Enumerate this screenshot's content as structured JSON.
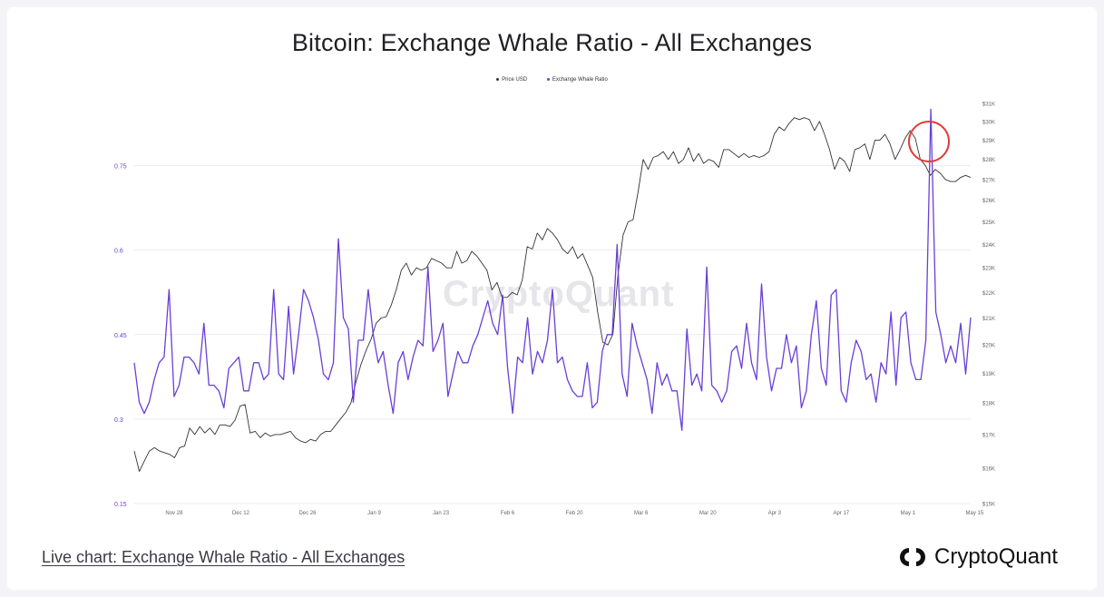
{
  "page": {
    "title": "Bitcoin: Exchange Whale Ratio - All Exchanges",
    "watermark": "CryptoQuant",
    "live_link": "Live chart: Exchange Whale Ratio - All Exchanges",
    "brand_name": "CryptoQuant",
    "brand_logo_icon": "cryptoquant-logo-icon"
  },
  "chart_data": {
    "type": "line",
    "title": "Bitcoin: Exchange Whale Ratio - All Exchanges",
    "legend_position": "top-center",
    "grid": true,
    "annotations": [
      {
        "type": "circle",
        "color": "#e03c3c",
        "target": "peak around May 8"
      }
    ],
    "x_tick_labels": [
      "Nov 28",
      "Dec 12",
      "Dec 26",
      "Jan 9",
      "Jan 23",
      "Feb 6",
      "Feb 20",
      "Mar 6",
      "Mar 20",
      "Apr 3",
      "Apr 17",
      "May 1",
      "May 15"
    ],
    "y_left": {
      "ticks": [
        0.15,
        0.3,
        0.45,
        0.6,
        0.75
      ],
      "tick_labels": [
        "0.15",
        "0.3",
        "0.45",
        "0.6",
        "0.75"
      ],
      "range": [
        0.15,
        0.87
      ]
    },
    "y_right": {
      "ticks": [
        15000,
        16000,
        17000,
        18000,
        19000,
        20000,
        21000,
        22000,
        23000,
        24000,
        25000,
        26000,
        27000,
        28000,
        29000,
        30000,
        31000
      ],
      "tick_labels": [
        "$15K",
        "$16K",
        "$17K",
        "$18K",
        "$19K",
        "$20K",
        "$21K",
        "$22K",
        "$23K",
        "$24K",
        "$25K",
        "$26K",
        "$27K",
        "$28K",
        "$29K",
        "$30K",
        "$31K"
      ],
      "scale": "log"
    },
    "series": [
      {
        "name": "Price USD",
        "color": "#333333",
        "axis": "right",
        "values": [
          16500,
          15900,
          16200,
          16500,
          16600,
          16500,
          16450,
          16400,
          16300,
          16600,
          16650,
          17200,
          17000,
          17250,
          17050,
          17200,
          17000,
          17300,
          17300,
          17250,
          17450,
          17900,
          17950,
          17050,
          17100,
          16900,
          17050,
          16950,
          17000,
          17000,
          17050,
          17100,
          16900,
          16800,
          16750,
          16850,
          16800,
          17000,
          17100,
          17100,
          17300,
          17500,
          17700,
          18000,
          18700,
          19300,
          19800,
          20200,
          20800,
          21000,
          21050,
          21500,
          22100,
          22900,
          23200,
          22700,
          23000,
          22900,
          23000,
          23400,
          23300,
          23200,
          23000,
          23000,
          23700,
          23200,
          23300,
          23700,
          23500,
          23200,
          22900,
          22100,
          22400,
          21800,
          21800,
          22000,
          21900,
          22500,
          23900,
          23800,
          24500,
          24200,
          24700,
          24500,
          24200,
          23800,
          23600,
          23900,
          23400,
          23600,
          23100,
          22600,
          21200,
          20100,
          20000,
          20400,
          22700,
          24400,
          25000,
          25100,
          26400,
          28000,
          27500,
          28100,
          28200,
          28400,
          28000,
          28400,
          27800,
          28000,
          28600,
          27900,
          28300,
          27800,
          28000,
          27900,
          27600,
          28500,
          28500,
          28300,
          28100,
          28300,
          28100,
          28200,
          28100,
          28200,
          28400,
          29300,
          29700,
          29500,
          29900,
          30200,
          30100,
          30200,
          30100,
          29500,
          30000,
          29300,
          28500,
          27500,
          28100,
          27900,
          27400,
          28500,
          28600,
          28800,
          28000,
          29000,
          29000,
          29300,
          28800,
          28000,
          28500,
          29100,
          29500,
          29100,
          28000,
          27700,
          27200,
          27500,
          27300,
          27000,
          26900,
          26900,
          27100,
          27200,
          27100
        ]
      },
      {
        "name": "Exchange Whale Ratio",
        "color": "#6a3fd6",
        "axis": "left",
        "values": [
          0.4,
          0.33,
          0.31,
          0.33,
          0.37,
          0.4,
          0.41,
          0.53,
          0.34,
          0.36,
          0.41,
          0.41,
          0.4,
          0.38,
          0.47,
          0.36,
          0.36,
          0.35,
          0.32,
          0.39,
          0.4,
          0.41,
          0.35,
          0.35,
          0.4,
          0.4,
          0.37,
          0.38,
          0.53,
          0.38,
          0.37,
          0.5,
          0.38,
          0.45,
          0.53,
          0.51,
          0.48,
          0.44,
          0.38,
          0.37,
          0.4,
          0.62,
          0.48,
          0.46,
          0.33,
          0.44,
          0.44,
          0.53,
          0.45,
          0.4,
          0.42,
          0.36,
          0.31,
          0.4,
          0.42,
          0.37,
          0.41,
          0.44,
          0.43,
          0.57,
          0.42,
          0.44,
          0.47,
          0.34,
          0.38,
          0.42,
          0.4,
          0.4,
          0.43,
          0.45,
          0.48,
          0.51,
          0.47,
          0.45,
          0.52,
          0.39,
          0.31,
          0.41,
          0.4,
          0.48,
          0.38,
          0.42,
          0.4,
          0.44,
          0.53,
          0.4,
          0.41,
          0.37,
          0.35,
          0.34,
          0.34,
          0.4,
          0.32,
          0.33,
          0.42,
          0.45,
          0.45,
          0.61,
          0.38,
          0.34,
          0.47,
          0.43,
          0.4,
          0.37,
          0.31,
          0.4,
          0.36,
          0.38,
          0.35,
          0.35,
          0.28,
          0.46,
          0.36,
          0.38,
          0.35,
          0.57,
          0.36,
          0.35,
          0.33,
          0.35,
          0.42,
          0.43,
          0.39,
          0.47,
          0.4,
          0.37,
          0.54,
          0.41,
          0.35,
          0.39,
          0.39,
          0.45,
          0.4,
          0.43,
          0.32,
          0.35,
          0.45,
          0.51,
          0.39,
          0.36,
          0.52,
          0.53,
          0.35,
          0.33,
          0.4,
          0.44,
          0.42,
          0.37,
          0.38,
          0.33,
          0.4,
          0.38,
          0.49,
          0.36,
          0.48,
          0.49,
          0.4,
          0.37,
          0.37,
          0.44,
          0.85,
          0.49,
          0.45,
          0.4,
          0.43,
          0.4,
          0.47,
          0.38,
          0.48
        ]
      }
    ]
  }
}
